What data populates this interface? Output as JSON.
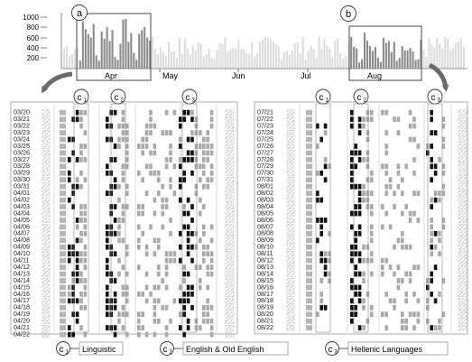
{
  "histogram": {
    "y_ticks": [
      "1000",
      "800",
      "600",
      "400",
      "200"
    ],
    "month_labels": [
      "Apr",
      "May",
      "Jun",
      "Jul",
      "Aug"
    ],
    "callouts": [
      "a",
      "b"
    ]
  },
  "date_labels": {
    "left": [
      "03/20",
      "03/21",
      "03/22",
      "03/23",
      "03/24",
      "03/25",
      "03/26",
      "03/27",
      "03/28",
      "03/29",
      "03/30",
      "03/31",
      "04/01",
      "04/02",
      "04/03",
      "04/04",
      "04/05",
      "04/06",
      "04/07",
      "04/08",
      "04/09",
      "04/10",
      "04/11",
      "04/12",
      "04/13",
      "04/14",
      "04/15",
      "04/16",
      "04/17",
      "04/18",
      "04/19",
      "04/20",
      "04/21",
      "04/22"
    ],
    "right": [
      "07/21",
      "07/22",
      "07/23",
      "07/24",
      "07/25",
      "07/26",
      "07/27",
      "07/28",
      "07/29",
      "07/30",
      "07/31",
      "08/01",
      "08/02",
      "08/03",
      "08/04",
      "08/05",
      "08/06",
      "08/07",
      "08/08",
      "08/09",
      "08/10",
      "08/11",
      "08/12",
      "08/13",
      "08/14",
      "08/15",
      "08/16",
      "08/17",
      "08/18",
      "08/19",
      "08/20",
      "08/21",
      "08/22"
    ]
  },
  "column_badges": [
    {
      "letter": "c",
      "sub": "1"
    },
    {
      "letter": "c",
      "sub": "2"
    },
    {
      "letter": "c",
      "sub": "3"
    }
  ],
  "legend": [
    {
      "letter": "c",
      "sub": "1",
      "label": "Linguistic"
    },
    {
      "letter": "c",
      "sub": "2",
      "label": "English & Old English"
    },
    {
      "letter": "c",
      "sub": "3",
      "label": "Hellenic Languages"
    }
  ]
}
